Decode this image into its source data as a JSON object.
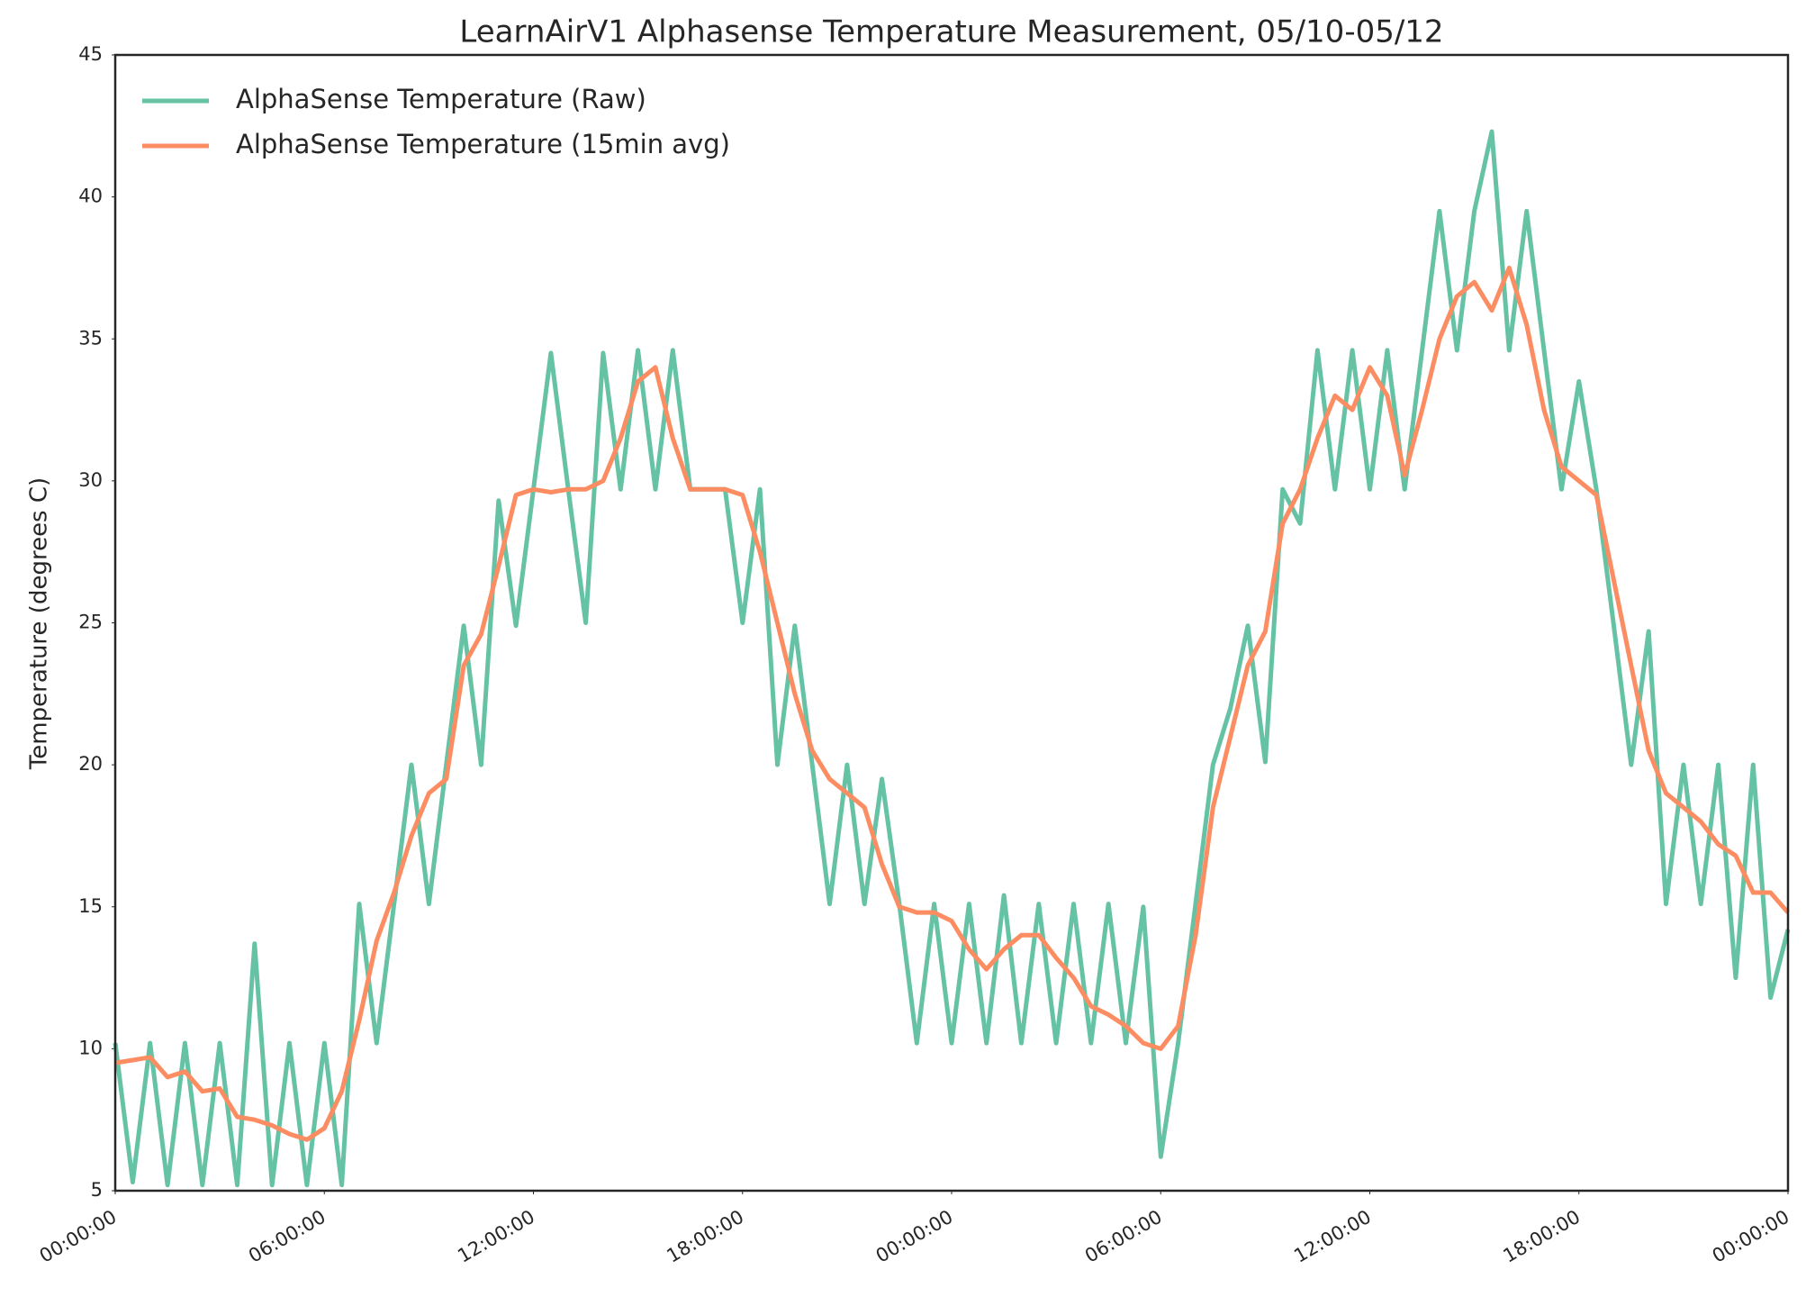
{
  "chart_data": {
    "type": "line",
    "title": "LearnAirV1 Alphasense Temperature Measurement, 05/10-05/12",
    "y_label": "Temperature (degrees C)",
    "x": [
      0,
      0.5,
      1,
      1.5,
      2,
      2.5,
      3,
      3.5,
      4,
      4.5,
      5,
      5.5,
      6,
      6.5,
      7,
      7.5,
      8,
      8.5,
      9,
      9.5,
      10,
      10.5,
      11,
      11.5,
      12,
      12.5,
      13,
      13.5,
      14,
      14.5,
      15,
      15.5,
      16,
      16.5,
      17,
      17.5,
      18,
      18.5,
      19,
      19.5,
      20,
      20.5,
      21,
      21.5,
      22,
      22.5,
      23,
      23.5,
      24,
      24.5,
      25,
      25.5,
      26,
      26.5,
      27,
      27.5,
      28,
      28.5,
      29,
      29.5,
      30,
      30.5,
      31,
      31.5,
      32,
      32.5,
      33,
      33.5,
      34,
      34.5,
      35,
      35.5,
      36,
      36.5,
      37,
      37.5,
      38,
      38.5,
      39,
      39.5,
      40,
      40.5,
      41,
      41.5,
      42,
      42.5,
      43,
      43.5,
      44,
      44.5,
      45,
      45.5,
      46,
      46.5,
      47,
      47.5,
      48
    ],
    "series": [
      {
        "name": "AlphaSense Temperature (Raw)",
        "color": "#66c2a5",
        "values": [
          10.2,
          5.3,
          10.2,
          5.2,
          10.2,
          5.2,
          10.2,
          5.2,
          13.7,
          5.2,
          10.2,
          5.2,
          10.2,
          5.2,
          15.1,
          10.2,
          15.1,
          20.0,
          15.1,
          20.0,
          24.9,
          20.0,
          29.3,
          24.9,
          29.7,
          34.5,
          29.7,
          25.0,
          34.5,
          29.7,
          34.6,
          29.7,
          34.6,
          29.7,
          29.7,
          29.7,
          25.0,
          29.7,
          20.0,
          24.9,
          20.0,
          15.1,
          20.0,
          15.1,
          19.5,
          15.1,
          10.2,
          15.1,
          10.2,
          15.1,
          10.2,
          15.4,
          10.2,
          15.1,
          10.2,
          15.1,
          10.2,
          15.1,
          10.2,
          15.0,
          6.2,
          10.2,
          15.1,
          20.0,
          22.0,
          24.9,
          20.1,
          29.7,
          28.5,
          34.6,
          29.7,
          34.6,
          29.7,
          34.6,
          29.7,
          34.6,
          39.5,
          34.6,
          39.5,
          42.3,
          34.6,
          39.5,
          34.6,
          29.7,
          33.5,
          29.7,
          24.9,
          20.0,
          24.7,
          15.1,
          20.0,
          15.1,
          20.0,
          12.5,
          20.0,
          11.8,
          14.2
        ]
      },
      {
        "name": "AlphaSense Temperature (15min avg)",
        "color": "#fc8d62",
        "values": [
          9.5,
          9.6,
          9.7,
          9.0,
          9.2,
          8.5,
          8.6,
          7.6,
          7.5,
          7.3,
          7.0,
          6.8,
          7.2,
          8.5,
          11,
          13.8,
          15.5,
          17.5,
          19.0,
          19.5,
          23.5,
          24.6,
          27,
          29.5,
          29.7,
          29.6,
          29.7,
          29.7,
          30.0,
          31.5,
          33.5,
          34.0,
          31.5,
          29.7,
          29.7,
          29.7,
          29.5,
          27.5,
          25.0,
          22.5,
          20.5,
          19.5,
          19.0,
          18.5,
          16.5,
          15.0,
          14.8,
          14.8,
          14.5,
          13.5,
          12.8,
          13.5,
          14.0,
          14.0,
          13.2,
          12.5,
          11.5,
          11.2,
          10.8,
          10.2,
          10.0,
          10.8,
          14.0,
          18.5,
          21.0,
          23.5,
          24.7,
          28.5,
          29.7,
          31.5,
          33.0,
          32.5,
          34.0,
          33.0,
          30.2,
          32.5,
          35.0,
          36.5,
          37.0,
          36.0,
          37.5,
          35.5,
          32.5,
          30.5,
          30.0,
          29.5,
          26.5,
          23.5,
          20.5,
          19.0,
          18.5,
          18.0,
          17.2,
          16.8,
          15.5,
          15.5,
          14.8
        ]
      }
    ],
    "xlim": [
      0,
      48
    ],
    "xticks": [
      {
        "value": 0,
        "label": "00:00:00"
      },
      {
        "value": 6,
        "label": "06:00:00"
      },
      {
        "value": 12,
        "label": "12:00:00"
      },
      {
        "value": 18,
        "label": "18:00:00"
      },
      {
        "value": 24,
        "label": "00:00:00"
      },
      {
        "value": 30,
        "label": "06:00:00"
      },
      {
        "value": 36,
        "label": "12:00:00"
      },
      {
        "value": 42,
        "label": "18:00:00"
      },
      {
        "value": 48,
        "label": "00:00:00"
      }
    ],
    "ylim": [
      5,
      45
    ],
    "yticks": [
      5,
      10,
      15,
      20,
      25,
      30,
      35,
      40,
      45
    ],
    "legend": "upper left"
  }
}
